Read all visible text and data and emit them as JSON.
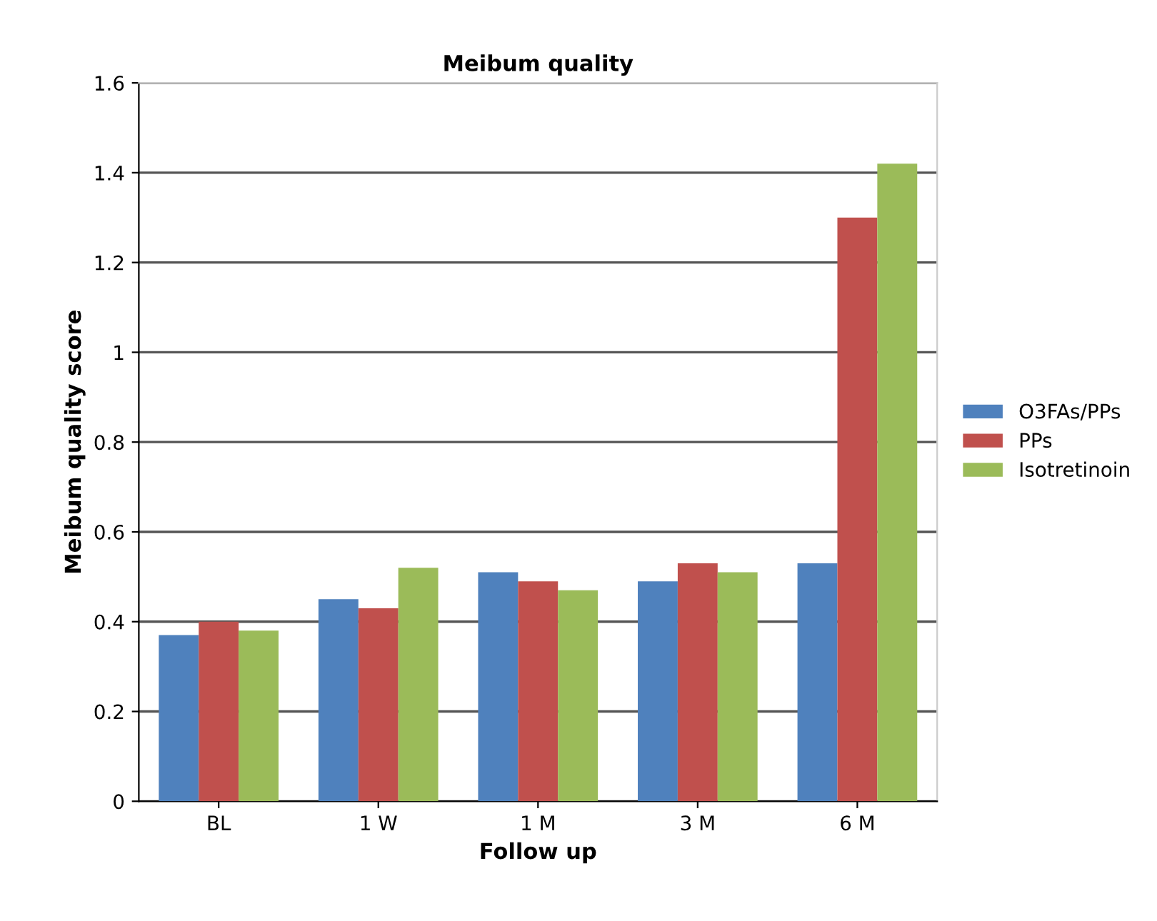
{
  "chart_data": {
    "type": "bar",
    "title": "Meibum quality",
    "xlabel": "Follow up",
    "ylabel": "Meibum quality score",
    "categories": [
      "BL",
      "1 W",
      "1 M",
      "3 M",
      "6 M"
    ],
    "series": [
      {
        "name": "O3FAs/PPs",
        "color": "#4f81bd",
        "values": [
          0.37,
          0.45,
          0.51,
          0.49,
          0.53
        ]
      },
      {
        "name": "PPs",
        "color": "#c0504d",
        "values": [
          0.4,
          0.43,
          0.49,
          0.53,
          1.3
        ]
      },
      {
        "name": "Isotretinoin",
        "color": "#9bbb59",
        "values": [
          0.38,
          0.52,
          0.47,
          0.51,
          1.42
        ]
      }
    ],
    "ylim": [
      0,
      1.6
    ],
    "yticks": [
      0,
      0.2,
      0.4,
      0.6,
      0.8,
      1,
      1.2,
      1.4,
      1.6
    ],
    "grid": "y",
    "legend": "right"
  }
}
